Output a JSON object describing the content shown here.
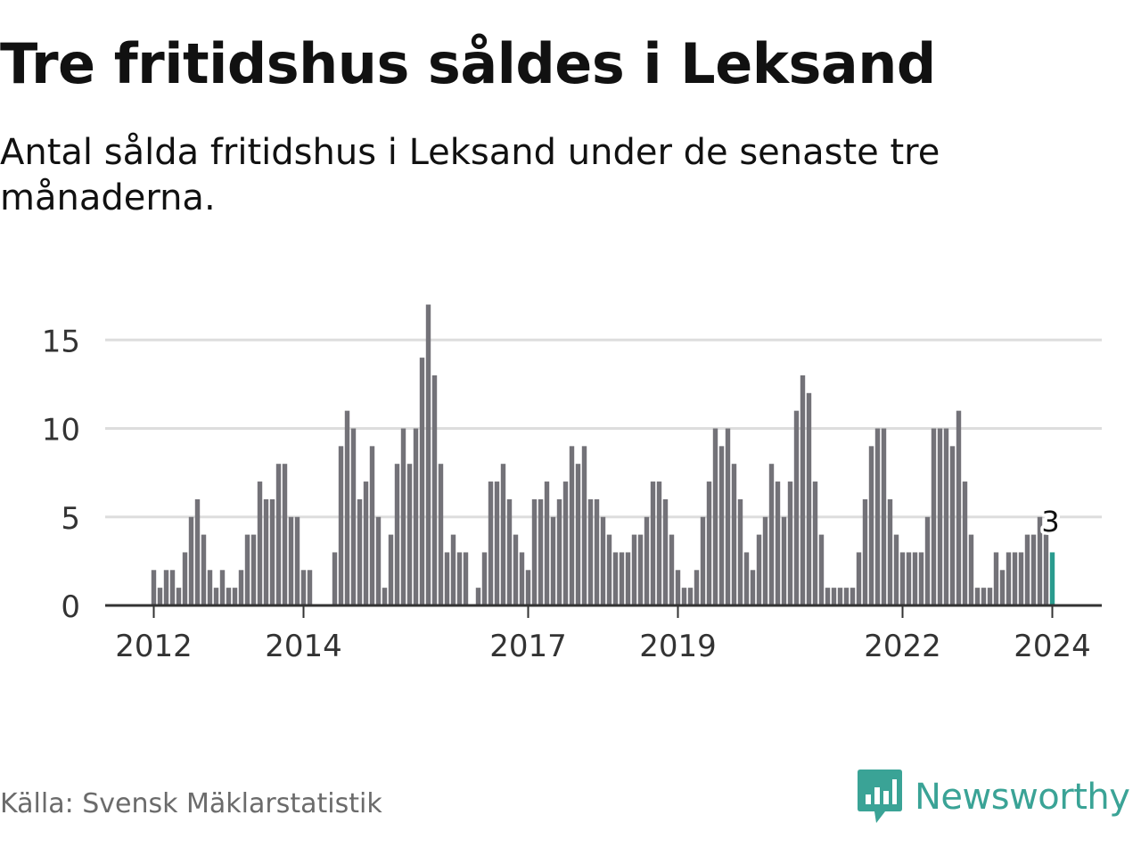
{
  "title": "Tre fritidshus såldes i Leksand",
  "subtitle": "Antal sålda fritidshus i Leksand under de senaste tre månaderna.",
  "source": "Källa: Svensk Mäklarstatistik",
  "brand": {
    "name": "Newsworthy",
    "icon": "newsworthy-logo-icon"
  },
  "colors": {
    "bar": "#737278",
    "highlight": "#2a9b8e",
    "grid": "#dddddd",
    "axis": "#333333",
    "brand": "#3aa396"
  },
  "chart_data": {
    "type": "bar",
    "title": "Tre fritidshus såldes i Leksand",
    "xlabel": "",
    "ylabel": "",
    "ylim": [
      0,
      17
    ],
    "yticks": [
      0,
      5,
      10,
      15
    ],
    "grid": true,
    "xticks": [
      {
        "label": "2012",
        "index": 0
      },
      {
        "label": "2014",
        "index": 24
      },
      {
        "label": "2017",
        "index": 60
      },
      {
        "label": "2019",
        "index": 84
      },
      {
        "label": "2022",
        "index": 120
      },
      {
        "label": "2024",
        "index": 144
      }
    ],
    "annotation": {
      "label": "3",
      "index": 144
    },
    "period": "monthly, Jan 2012 – Jan 2024",
    "values": [
      2,
      1,
      2,
      2,
      1,
      3,
      5,
      6,
      4,
      2,
      1,
      2,
      1,
      1,
      2,
      4,
      4,
      7,
      6,
      6,
      8,
      8,
      5,
      5,
      2,
      2,
      0,
      0,
      0,
      3,
      9,
      11,
      10,
      6,
      7,
      9,
      5,
      1,
      4,
      8,
      10,
      8,
      10,
      14,
      17,
      13,
      8,
      3,
      4,
      3,
      3,
      0,
      1,
      3,
      7,
      7,
      8,
      6,
      4,
      3,
      2,
      6,
      6,
      7,
      5,
      6,
      7,
      9,
      8,
      9,
      6,
      6,
      5,
      4,
      3,
      3,
      3,
      4,
      4,
      5,
      7,
      7,
      6,
      4,
      2,
      1,
      1,
      2,
      5,
      7,
      10,
      9,
      10,
      8,
      6,
      3,
      2,
      4,
      5,
      8,
      7,
      5,
      7,
      11,
      13,
      12,
      7,
      4,
      1,
      1,
      1,
      1,
      1,
      3,
      6,
      9,
      10,
      10,
      6,
      4,
      3,
      3,
      3,
      3,
      5,
      10,
      10,
      10,
      9,
      11,
      7,
      4,
      1,
      1,
      1,
      3,
      2,
      3,
      3,
      3,
      4,
      4,
      5,
      4,
      3
    ]
  }
}
